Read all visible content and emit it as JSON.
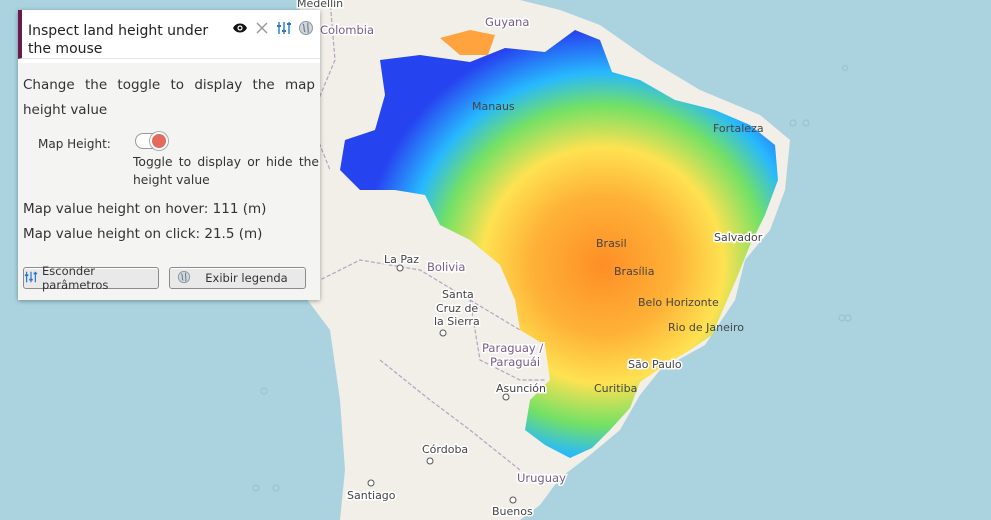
{
  "panel": {
    "title": "Inspect land height under the mouse",
    "description": "Change the toggle to display the map height value",
    "toggle_label": "Map Height:",
    "toggle_state": "on",
    "toggle_hint": "Toggle to display or hide the height value",
    "hover_text": "Map value height on hover: 111 (m)",
    "click_text": "Map value height on click: 21.5 (m)",
    "button_hide_params": "Esconder parâmetros",
    "button_show_legend": "Exibir legenda",
    "tools": [
      "eye-icon",
      "close-icon",
      "sliders-icon",
      "globe-icon"
    ]
  },
  "map": {
    "labels": {
      "medellin": "Medellín",
      "colombia": "Colombia",
      "guyana": "Guyana",
      "manaus": "Manaus",
      "fortaleza": "Fortaleza",
      "salvador": "Salvador",
      "brasilia": "Brasília",
      "brasil": "Brasil",
      "belo_horizonte": "Belo Horizonte",
      "rio": "Rio de Janeiro",
      "sao_paulo": "São Paulo",
      "curitiba": "Curitiba",
      "la_paz": "La Paz",
      "bolivia": "Bolivia",
      "santa_cruz_1": "Santa",
      "santa_cruz_2": "Cruz de",
      "santa_cruz_3": "la Sierra",
      "paraguay_1": "Paraguay /",
      "paraguay_2": "Paraguái",
      "asuncion": "Asunción",
      "cordoba": "Córdoba",
      "santiago": "Santiago",
      "uruguay": "Uruguay",
      "buenos_aires": "Buenos"
    },
    "colors": {
      "ocean": "#aad3df",
      "land": "#f2efe9",
      "border": "#b4a3c3",
      "height_low": "#1e3cf0",
      "height_mid": "#ffe14b",
      "height_high": "#ff5a1e"
    }
  }
}
